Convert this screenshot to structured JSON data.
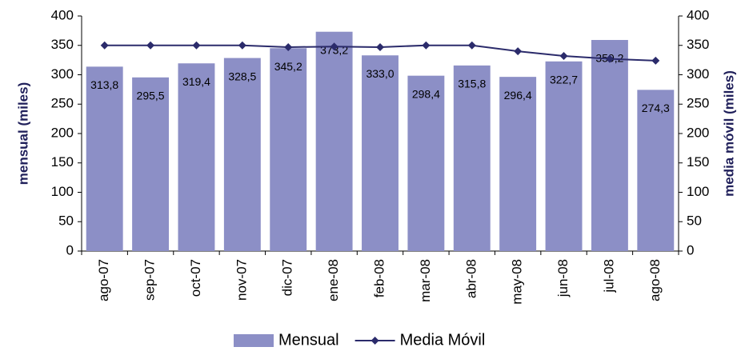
{
  "chart_data": {
    "type": "combo",
    "y_label": "mensual (miles)",
    "y2_label": "media móvil (miles)",
    "categories": [
      "ago-07",
      "sep-07",
      "oct-07",
      "nov-07",
      "dic-07",
      "ene-08",
      "feb-08",
      "mar-08",
      "abr-08",
      "may-08",
      "jun-08",
      "jul-08",
      "ago-08"
    ],
    "series": [
      {
        "name": "Mensual",
        "type": "bar",
        "color": "#8c8fc6",
        "values": [
          313.8,
          295.5,
          319.4,
          328.5,
          345.2,
          373.2,
          333.0,
          298.4,
          315.8,
          296.4,
          322.7,
          359.2,
          274.3
        ],
        "value_labels": [
          "313,8",
          "295,5",
          "319,4",
          "328,5",
          "345,2",
          "373,2",
          "333,0",
          "298,4",
          "315,8",
          "296,4",
          "322,7",
          "359,2",
          "274,3"
        ]
      },
      {
        "name": "Media Móvil",
        "type": "line",
        "color": "#2b2b6b",
        "axis": "y2",
        "values": [
          350,
          350,
          350,
          350,
          347,
          348,
          347,
          350,
          350,
          340,
          332,
          327,
          324
        ]
      }
    ],
    "ylim": [
      0,
      400
    ],
    "yticks": [
      0,
      50,
      100,
      150,
      200,
      250,
      300,
      350,
      400
    ],
    "y2lim": [
      0,
      400
    ],
    "y2ticks": [
      0,
      50,
      100,
      150,
      200,
      250,
      300,
      350,
      400
    ]
  }
}
